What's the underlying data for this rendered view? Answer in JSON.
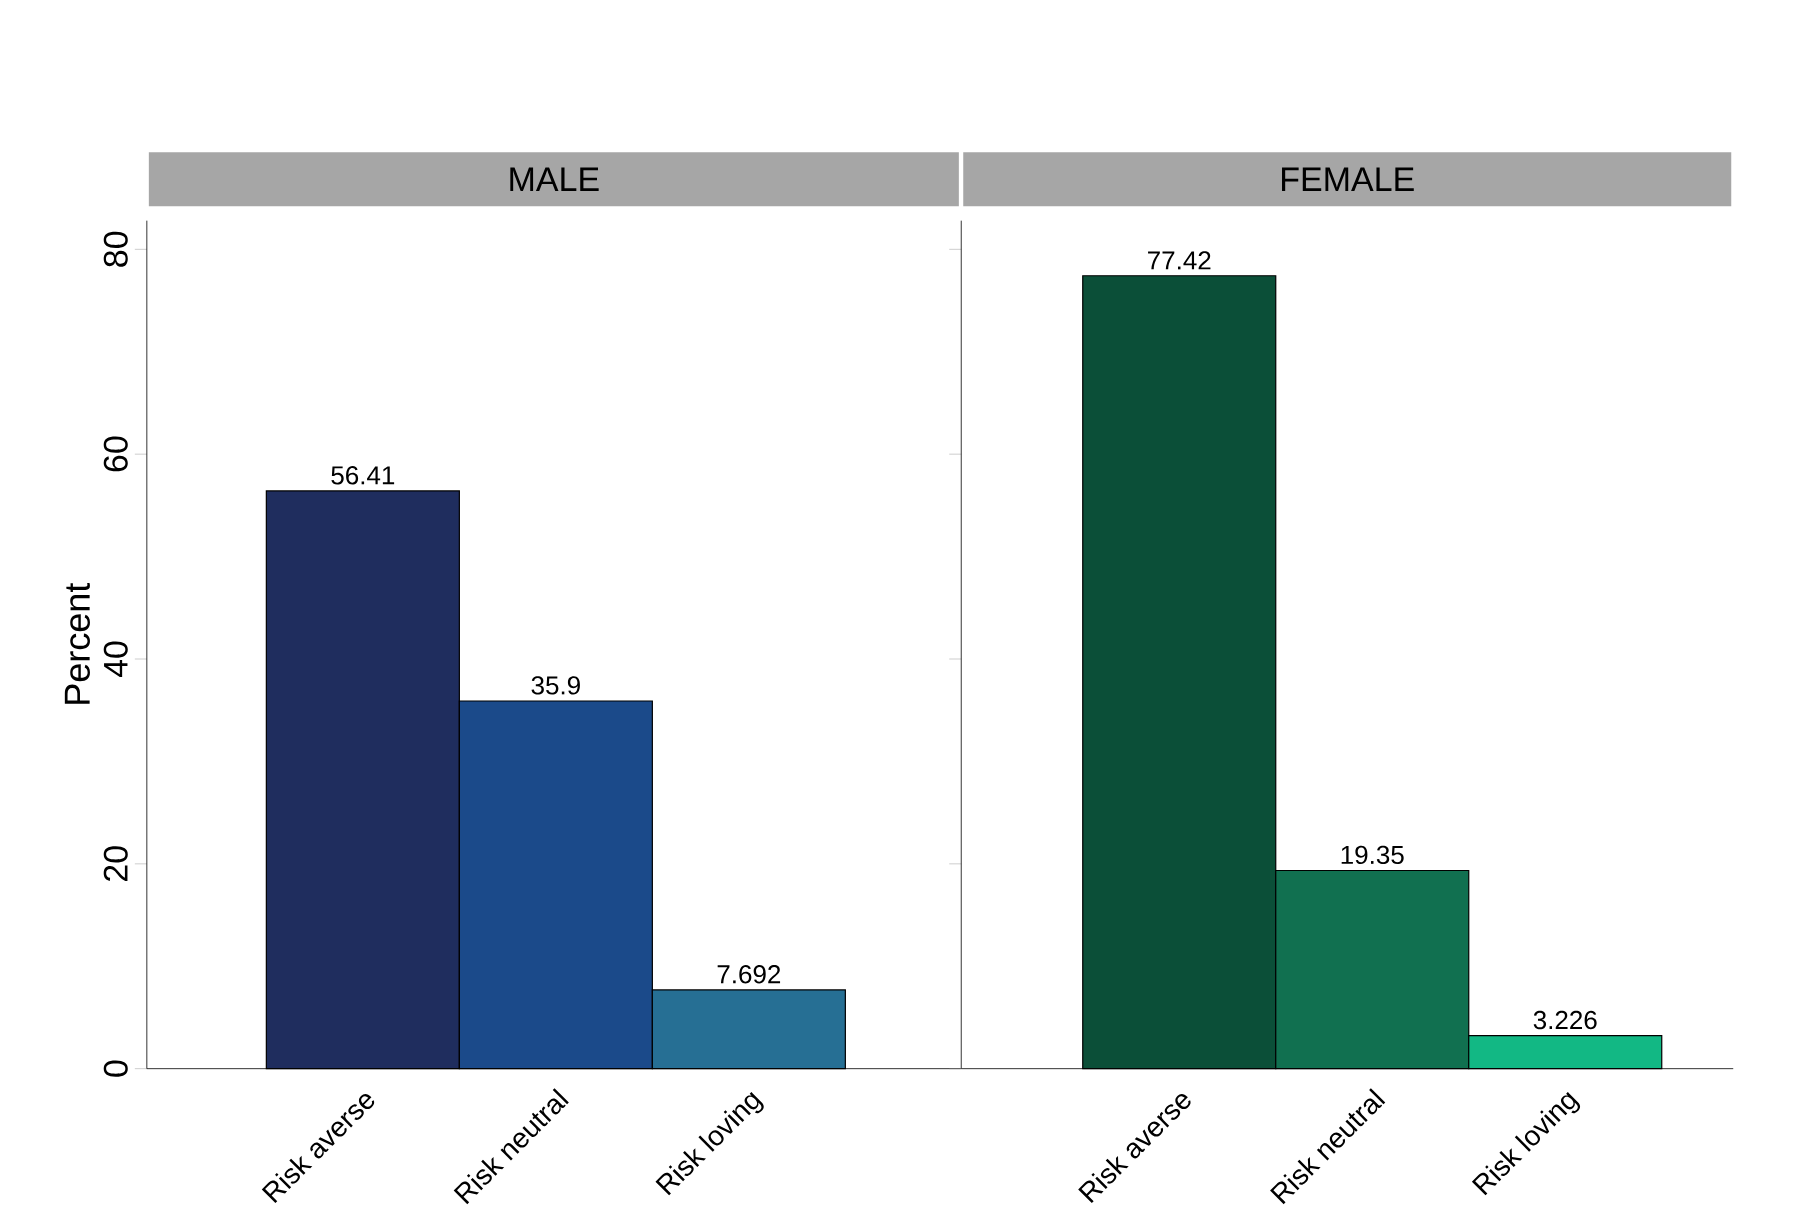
{
  "chart_data": [
    {
      "type": "bar",
      "title": "MALE",
      "ylabel": "Percent",
      "categories": [
        "Risk averse",
        "Risk neutral",
        "Risk loving"
      ],
      "values": [
        56.41,
        35.9,
        7.692
      ],
      "colors": [
        "#1f2d5e",
        "#1b4a8a",
        "#266f94"
      ],
      "data_labels": true,
      "ylim": [
        0,
        82.8
      ],
      "yticks": [
        0,
        20,
        40,
        60,
        80
      ]
    },
    {
      "type": "bar",
      "title": "FEMALE",
      "categories": [
        "Risk averse",
        "Risk neutral",
        "Risk loving"
      ],
      "values": [
        77.42,
        19.35,
        3.226
      ],
      "colors": [
        "#0b4f38",
        "#117050",
        "#12b884"
      ],
      "data_labels": true,
      "ylim": [
        0,
        82.8
      ],
      "yticks": [
        0,
        20,
        40,
        60,
        80
      ],
      "tick_labels": "x"
    }
  ]
}
